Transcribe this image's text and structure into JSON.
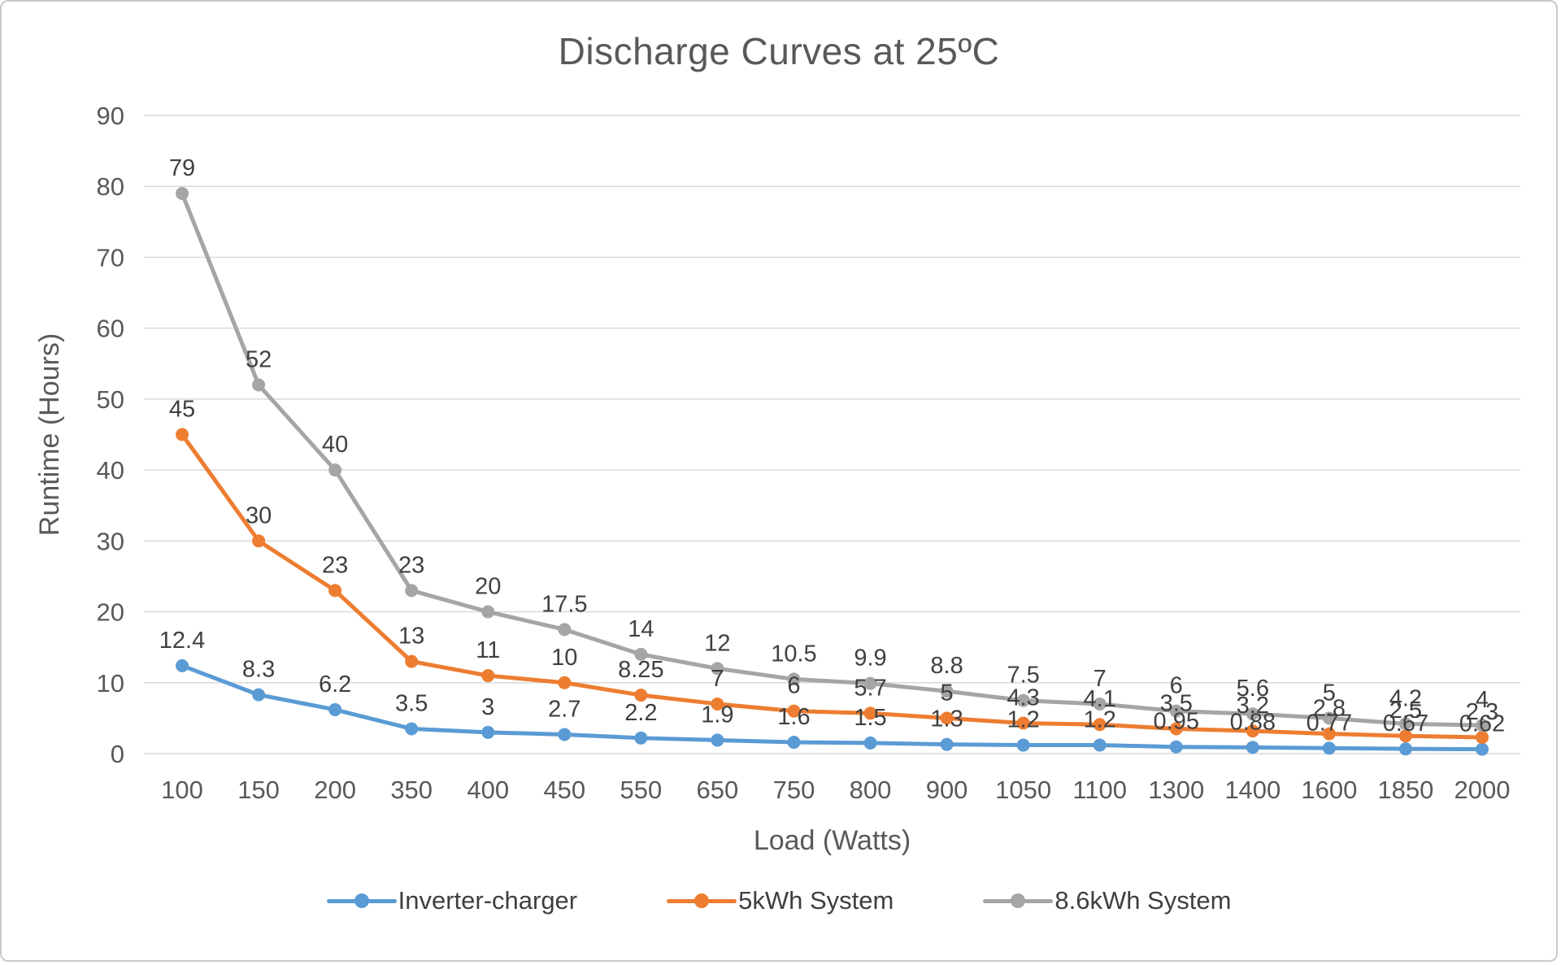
{
  "chart_data": {
    "type": "line",
    "title": "Discharge Curves at 25ºC",
    "xlabel": "Load (Watts)",
    "ylabel": "Runtime (Hours)",
    "ylim": [
      0,
      90
    ],
    "ytick_step": 10,
    "grid": true,
    "legend_position": "bottom",
    "gridline_color": "#d9d9d9",
    "axis_text_color": "#595959",
    "data_label_color": "#404040",
    "categories": [
      "100",
      "150",
      "200",
      "350",
      "400",
      "450",
      "550",
      "650",
      "750",
      "800",
      "900",
      "1050",
      "1100",
      "1300",
      "1400",
      "1600",
      "1850",
      "2000"
    ],
    "series": [
      {
        "name": "Inverter-charger",
        "color": "#5B9BD5",
        "values": [
          12.4,
          8.3,
          6.2,
          3.5,
          3,
          2.7,
          2.2,
          1.9,
          1.6,
          1.5,
          1.3,
          1.2,
          1.2,
          0.95,
          0.88,
          0.77,
          0.67,
          0.62
        ],
        "labels": [
          "12.4",
          "8.3",
          "6.2",
          "3.5",
          "3",
          "2.7",
          "2.2",
          "1.9",
          "1.6",
          "1.5",
          "1.3",
          "1.2",
          "1.2",
          "0.95",
          "0.88",
          "0.77",
          "0.67",
          "0.62"
        ]
      },
      {
        "name": "5kWh System",
        "color": "#ED7D31",
        "values": [
          45,
          30,
          23,
          13,
          11,
          10,
          8.25,
          7,
          6,
          5.7,
          5,
          4.3,
          4.1,
          3.5,
          3.2,
          2.8,
          2.5,
          2.3
        ],
        "labels": [
          "45",
          "30",
          "23",
          "13",
          "11",
          "10",
          "8.25",
          "7",
          "6",
          "5.7",
          "5",
          "4.3",
          "4.1",
          "3.5",
          "3.2",
          "2.8",
          "2.5",
          "2.3"
        ]
      },
      {
        "name": "8.6kWh System",
        "color": "#A5A5A5",
        "values": [
          79,
          52,
          40,
          23,
          20,
          17.5,
          14,
          12,
          10.5,
          9.9,
          8.8,
          7.5,
          7,
          6,
          5.6,
          5,
          4.2,
          4
        ],
        "labels": [
          "79",
          "52",
          "40",
          "23",
          "20",
          "17.5",
          "14",
          "12",
          "10.5",
          "9.9",
          "8.8",
          "7.5",
          "7",
          "6",
          "5.6",
          "5",
          "4.2",
          "4"
        ]
      }
    ]
  }
}
